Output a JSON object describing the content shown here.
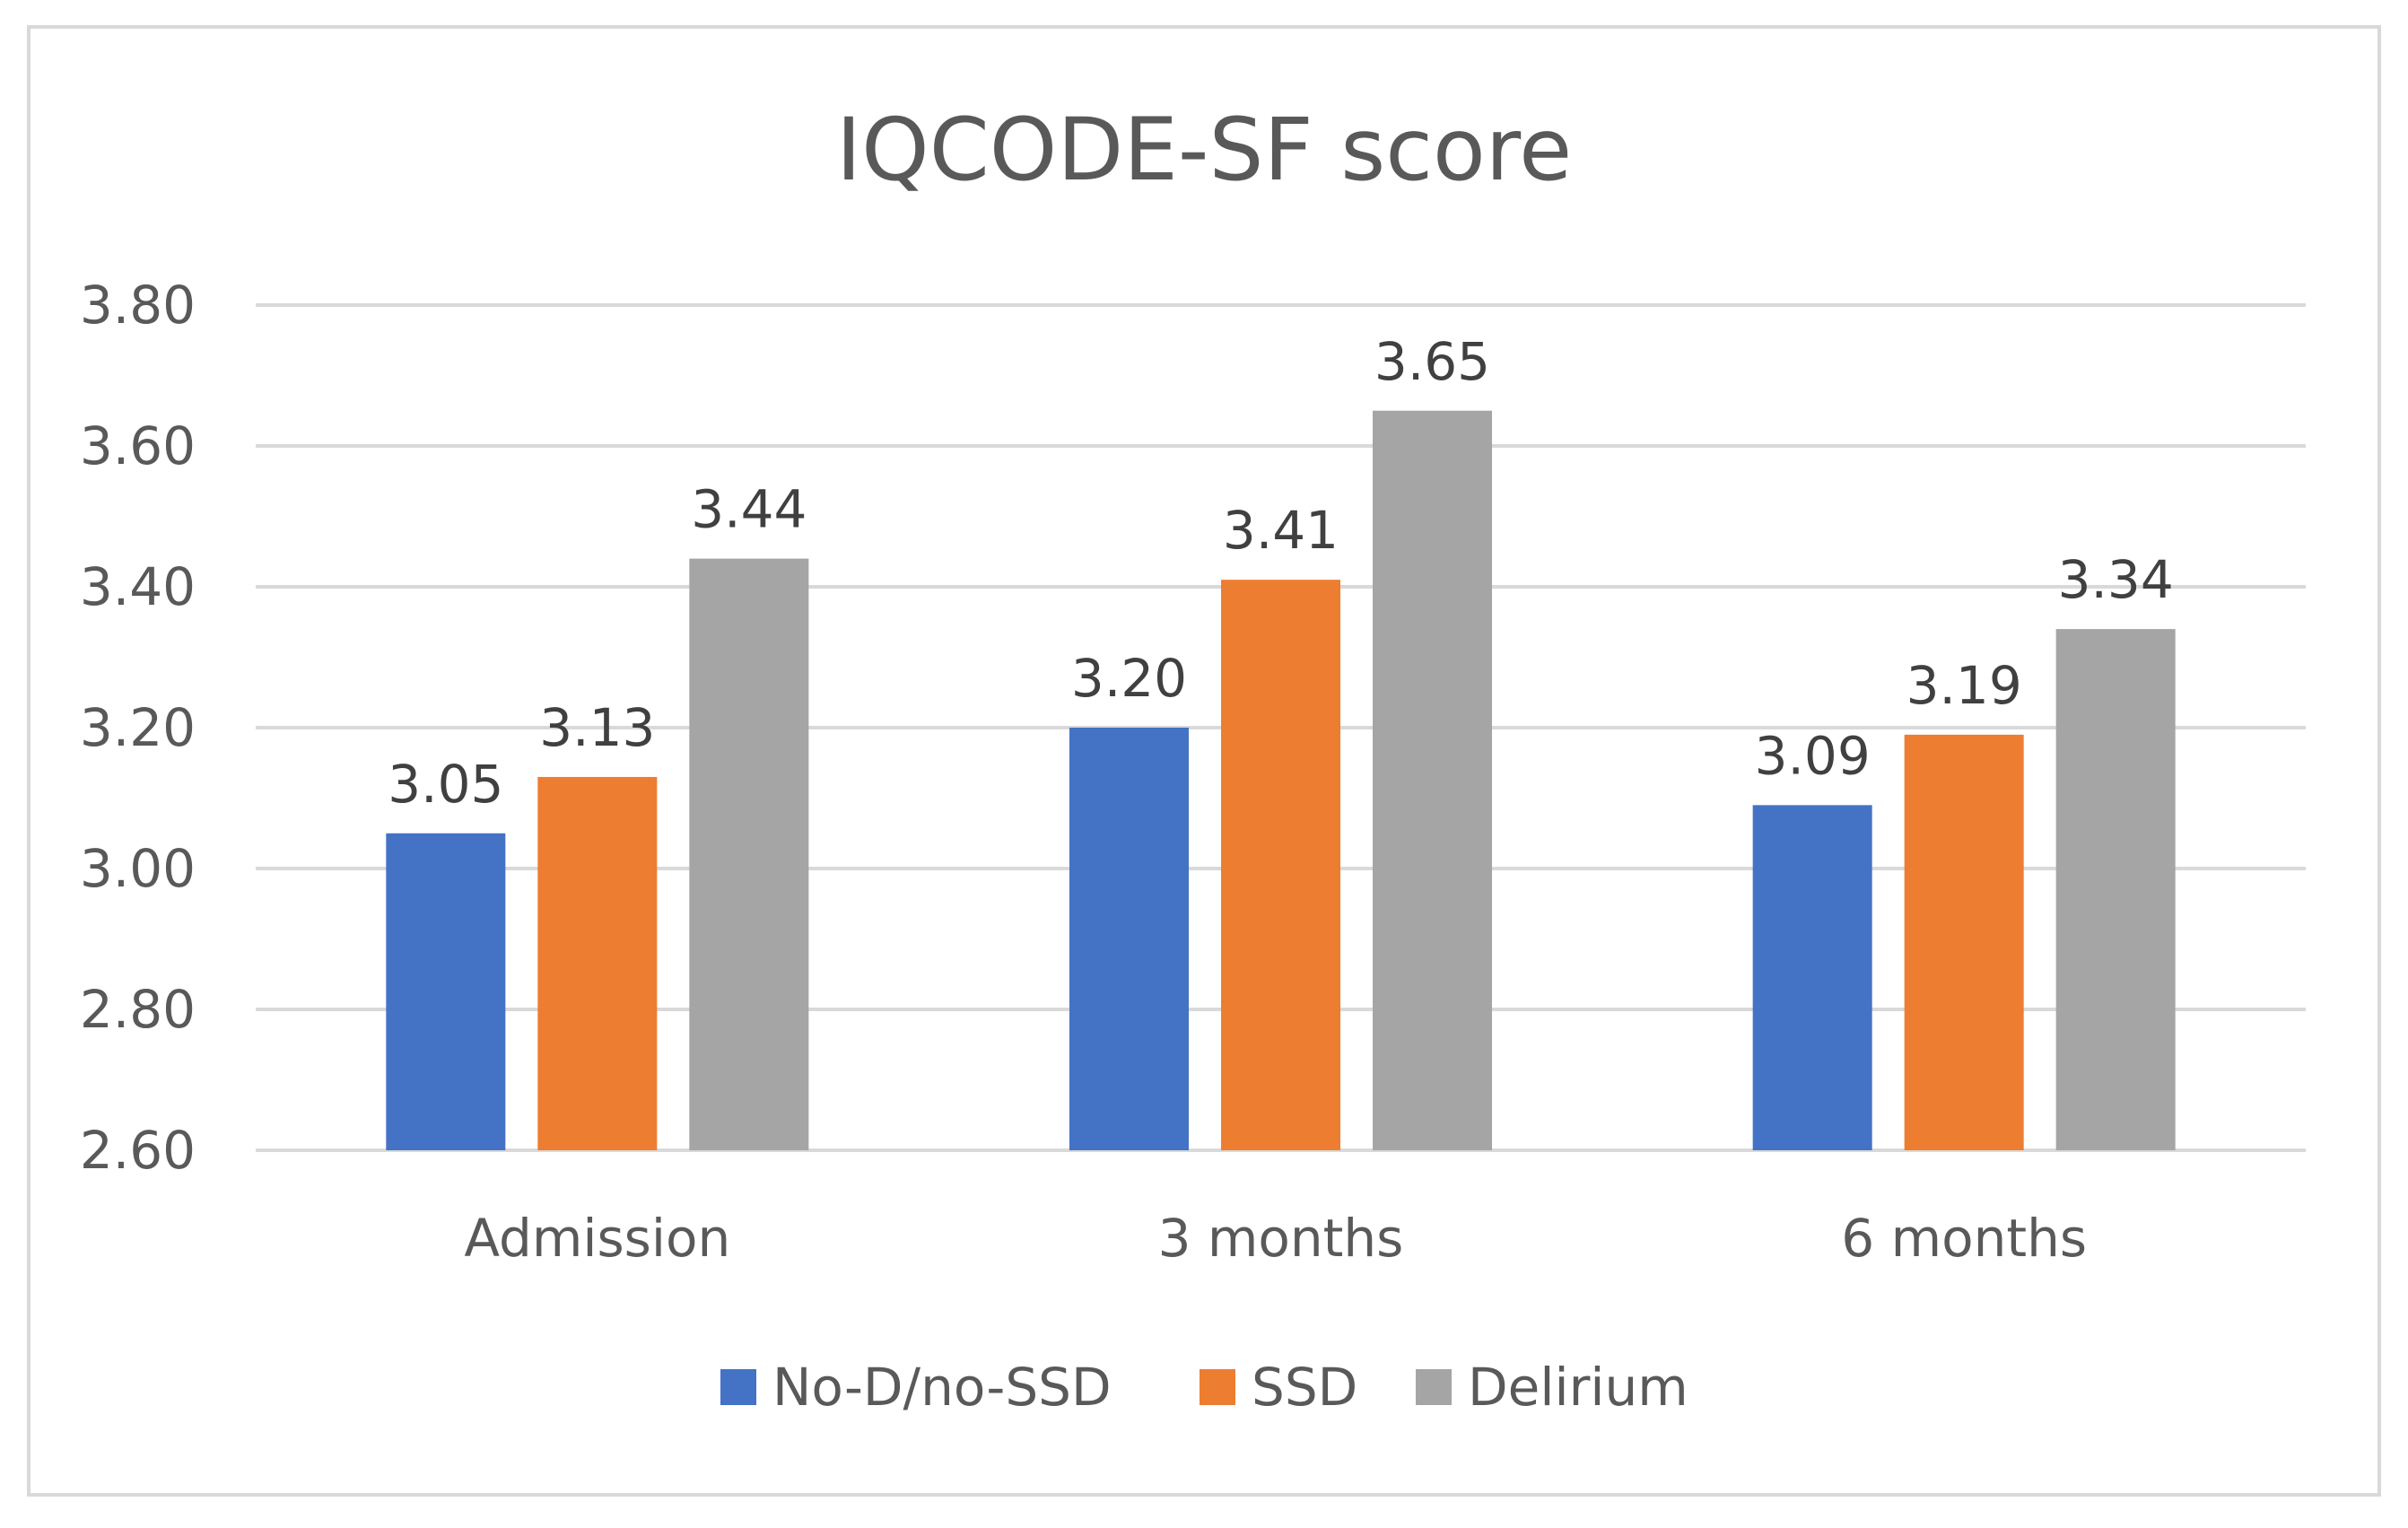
{
  "chart_data": {
    "type": "bar",
    "title": "IQCODE-SF score",
    "categories": [
      "Admission",
      "3 months",
      "6 months"
    ],
    "series": [
      {
        "name": "No-D/no-SSD",
        "color": "#4472c4",
        "values": [
          3.05,
          3.2,
          3.09
        ]
      },
      {
        "name": "SSD",
        "color": "#ed7d31",
        "values": [
          3.13,
          3.41,
          3.19
        ]
      },
      {
        "name": "Delirium",
        "color": "#a5a5a5",
        "values": [
          3.44,
          3.65,
          3.34
        ]
      }
    ],
    "ylim": [
      2.6,
      3.8
    ],
    "yticks": [
      "2.60",
      "2.80",
      "3.00",
      "3.20",
      "3.40",
      "3.60",
      "3.80"
    ],
    "xlabel": "",
    "ylabel": "",
    "grid": true,
    "legend_position": "bottom",
    "data_labels": [
      [
        "3.05",
        "3.20",
        "3.09"
      ],
      [
        "3.13",
        "3.41",
        "3.19"
      ],
      [
        "3.44",
        "3.65",
        "3.34"
      ]
    ]
  }
}
